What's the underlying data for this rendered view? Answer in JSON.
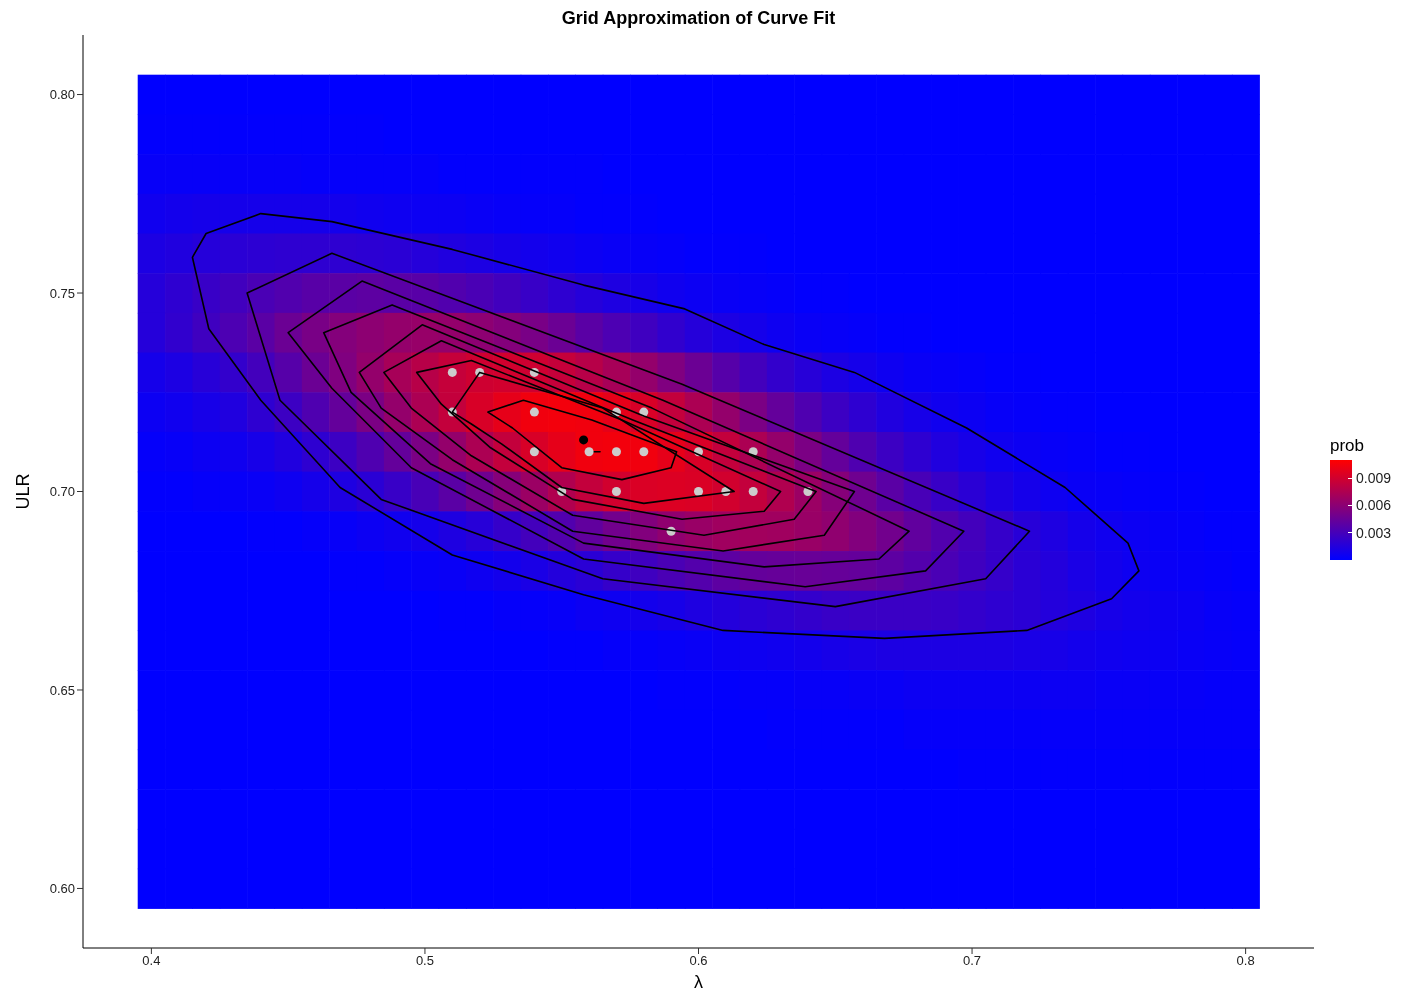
{
  "chart_data": {
    "type": "heatmap",
    "title": "Grid Approximation of Curve Fit",
    "xlabel": "λ",
    "ylabel": "ULR",
    "clabel": "prob",
    "x": [
      0.4,
      0.41,
      0.42,
      0.43,
      0.44,
      0.45,
      0.46,
      0.47,
      0.48,
      0.49,
      0.5,
      0.51,
      0.52,
      0.53,
      0.54,
      0.55,
      0.56,
      0.57,
      0.58,
      0.59,
      0.6,
      0.61,
      0.62,
      0.63,
      0.64,
      0.65,
      0.66,
      0.67,
      0.68,
      0.69,
      0.7,
      0.71,
      0.72,
      0.73,
      0.74,
      0.75,
      0.76,
      0.77,
      0.78,
      0.79,
      0.8
    ],
    "y": [
      0.8,
      0.79,
      0.78,
      0.77,
      0.76,
      0.75,
      0.74,
      0.73,
      0.72,
      0.71,
      0.7,
      0.69,
      0.68,
      0.67,
      0.66,
      0.65,
      0.64,
      0.63,
      0.62,
      0.61,
      0.6
    ],
    "cells": [
      [
        0,
        0,
        0,
        0,
        0,
        0,
        0,
        0,
        0,
        0,
        0,
        0,
        0,
        0,
        0,
        0,
        0,
        0,
        0,
        0,
        0,
        0,
        0,
        0,
        0,
        0,
        0,
        0,
        0,
        0,
        0,
        0,
        0,
        0,
        0,
        0,
        0,
        0,
        0,
        0,
        0
      ],
      [
        0.0001,
        0.0001,
        0.0001,
        0.0001,
        0.0001,
        0.0001,
        0.0001,
        0.0001,
        0.0001,
        0,
        0,
        0,
        0,
        0,
        0,
        0,
        0,
        0,
        0,
        0,
        0,
        0,
        0,
        0,
        0,
        0,
        0,
        0,
        0,
        0,
        0,
        0,
        0,
        0,
        0,
        0,
        0,
        0,
        0,
        0,
        0
      ],
      [
        0.0003,
        0.0003,
        0.0003,
        0.0003,
        0.0003,
        0.0003,
        0.0002,
        0.0002,
        0.0002,
        0.0002,
        0.0002,
        0.0001,
        0.0001,
        0.0001,
        0.0001,
        0.0001,
        0.0001,
        0,
        0,
        0,
        0,
        0,
        0,
        0,
        0,
        0,
        0,
        0,
        0,
        0,
        0,
        0,
        0,
        0,
        0,
        0,
        0,
        0,
        0,
        0,
        0
      ],
      [
        0.0007,
        0.0008,
        0.0009,
        0.0009,
        0.0009,
        0.0009,
        0.0009,
        0.0008,
        0.0007,
        0.0006,
        0.0005,
        0.0005,
        0.0004,
        0.0003,
        0.0002,
        0.0002,
        0.0001,
        0.0001,
        0.0001,
        0,
        0,
        0,
        0,
        0,
        0,
        0,
        0,
        0,
        0,
        0,
        0,
        0,
        0,
        0,
        0,
        0,
        0,
        0,
        0,
        0,
        0
      ],
      [
        0.0012,
        0.0014,
        0.0016,
        0.0018,
        0.0019,
        0.002,
        0.002,
        0.002,
        0.0019,
        0.0018,
        0.0016,
        0.0014,
        0.0012,
        0.001,
        0.0008,
        0.0007,
        0.0005,
        0.0004,
        0.0003,
        0.0002,
        0.0001,
        0.0001,
        0.0001,
        0,
        0,
        0,
        0,
        0,
        0,
        0,
        0,
        0,
        0,
        0,
        0,
        0,
        0,
        0,
        0,
        0,
        0
      ],
      [
        0.0016,
        0.002,
        0.0024,
        0.0028,
        0.0032,
        0.0035,
        0.0038,
        0.0039,
        0.004,
        0.0039,
        0.0038,
        0.0035,
        0.0032,
        0.0028,
        0.0024,
        0.002,
        0.0016,
        0.0013,
        0.001,
        0.0007,
        0.0005,
        0.0004,
        0.0003,
        0.0002,
        0.0001,
        0.0001,
        0,
        0,
        0,
        0,
        0,
        0,
        0,
        0,
        0,
        0,
        0,
        0,
        0,
        0,
        0
      ],
      [
        0.0016,
        0.0021,
        0.0027,
        0.0033,
        0.0039,
        0.0046,
        0.0052,
        0.0057,
        0.0061,
        0.0064,
        0.0065,
        0.0064,
        0.0061,
        0.0057,
        0.0052,
        0.0046,
        0.0039,
        0.0033,
        0.0027,
        0.0021,
        0.0016,
        0.0012,
        0.0009,
        0.0006,
        0.0004,
        0.0003,
        0.0002,
        0.0001,
        0.0001,
        0,
        0,
        0,
        0,
        0,
        0,
        0,
        0,
        0,
        0,
        0,
        0
      ],
      [
        0.0009,
        0.0012,
        0.0017,
        0.0022,
        0.0029,
        0.0037,
        0.0046,
        0.0055,
        0.0064,
        0.0072,
        0.0079,
        0.0085,
        0.0089,
        0.009,
        0.0089,
        0.0085,
        0.0079,
        0.0072,
        0.0064,
        0.0055,
        0.0046,
        0.0037,
        0.0029,
        0.0022,
        0.0017,
        0.0012,
        0.0009,
        0.0006,
        0.0004,
        0.0003,
        0.0002,
        0.0001,
        0.0001,
        0,
        0,
        0,
        0,
        0,
        0,
        0,
        0
      ],
      [
        0.0005,
        0.0007,
        0.001,
        0.0014,
        0.002,
        0.0026,
        0.0034,
        0.0043,
        0.0053,
        0.0064,
        0.0074,
        0.0084,
        0.0093,
        0.0099,
        0.0104,
        0.0105,
        0.0104,
        0.0099,
        0.0093,
        0.0084,
        0.0074,
        0.0064,
        0.0053,
        0.0043,
        0.0034,
        0.0026,
        0.002,
        0.0014,
        0.001,
        0.0007,
        0.0005,
        0.0003,
        0.0002,
        0.0001,
        0.0001,
        0,
        0,
        0,
        0,
        0,
        0
      ],
      [
        0.0002,
        0.0003,
        0.0005,
        0.0007,
        0.001,
        0.0014,
        0.002,
        0.0026,
        0.0034,
        0.0043,
        0.0053,
        0.0064,
        0.0074,
        0.0084,
        0.0093,
        0.0099,
        0.0104,
        0.0105,
        0.0104,
        0.0099,
        0.0093,
        0.0084,
        0.0074,
        0.0064,
        0.0053,
        0.0043,
        0.0034,
        0.0026,
        0.002,
        0.0014,
        0.001,
        0.0007,
        0.0005,
        0.0003,
        0.0002,
        0.0001,
        0.0001,
        0,
        0,
        0,
        0
      ],
      [
        0.0001,
        0.0001,
        0.0002,
        0.0003,
        0.0004,
        0.0006,
        0.0009,
        0.0013,
        0.0018,
        0.0024,
        0.0031,
        0.0039,
        0.0048,
        0.0058,
        0.0067,
        0.0076,
        0.0084,
        0.009,
        0.0094,
        0.0095,
        0.0094,
        0.009,
        0.0084,
        0.0076,
        0.0067,
        0.0058,
        0.0048,
        0.0039,
        0.0031,
        0.0024,
        0.0018,
        0.0013,
        0.0009,
        0.0006,
        0.0004,
        0.0003,
        0.0002,
        0.0001,
        0.0001,
        0,
        0
      ],
      [
        0,
        0,
        0,
        0,
        0.0001,
        0.0001,
        0.0002,
        0.0003,
        0.0005,
        0.0007,
        0.0009,
        0.0013,
        0.0017,
        0.0023,
        0.0029,
        0.0035,
        0.0042,
        0.0049,
        0.0056,
        0.0062,
        0.0066,
        0.0069,
        0.007,
        0.0069,
        0.0066,
        0.0062,
        0.0056,
        0.0049,
        0.0042,
        0.0035,
        0.0029,
        0.0023,
        0.0017,
        0.0013,
        0.0009,
        0.0007,
        0.0005,
        0.0003,
        0.0002,
        0.0001,
        0.0001
      ],
      [
        0,
        0,
        0,
        0,
        0,
        0,
        0,
        0.0001,
        0.0001,
        0.0002,
        0.0003,
        0.0004,
        0.0006,
        0.0008,
        0.0011,
        0.0015,
        0.0018,
        0.0023,
        0.0027,
        0.0032,
        0.0036,
        0.004,
        0.0043,
        0.0044,
        0.0045,
        0.0044,
        0.0043,
        0.004,
        0.0036,
        0.0032,
        0.0027,
        0.0023,
        0.0018,
        0.0015,
        0.0011,
        0.0008,
        0.0006,
        0.0004,
        0.0003,
        0.0002,
        0.0001
      ],
      [
        0,
        0,
        0,
        0,
        0,
        0,
        0,
        0,
        0,
        0,
        0,
        0.0001,
        0.0001,
        0.0002,
        0.0002,
        0.0003,
        0.0005,
        0.0006,
        0.0008,
        0.001,
        0.0013,
        0.0015,
        0.0018,
        0.002,
        0.0022,
        0.0024,
        0.0025,
        0.0025,
        0.0025,
        0.0024,
        0.0022,
        0.002,
        0.0018,
        0.0015,
        0.0013,
        0.001,
        0.0008,
        0.0006,
        0.0005,
        0.0003,
        0.0002
      ],
      [
        0,
        0,
        0,
        0,
        0,
        0,
        0,
        0,
        0,
        0,
        0,
        0,
        0,
        0,
        0,
        0.0001,
        0.0001,
        0.0002,
        0.0002,
        0.0003,
        0.0004,
        0.0005,
        0.0006,
        0.0007,
        0.0008,
        0.001,
        0.0011,
        0.0012,
        0.0012,
        0.0012,
        0.0012,
        0.0012,
        0.0011,
        0.001,
        0.0008,
        0.0007,
        0.0006,
        0.0005,
        0.0004,
        0.0003,
        0.0002
      ],
      [
        0,
        0,
        0,
        0,
        0,
        0,
        0,
        0,
        0,
        0,
        0,
        0,
        0,
        0,
        0,
        0,
        0,
        0,
        0,
        0.0001,
        0.0001,
        0.0001,
        0.0002,
        0.0002,
        0.0003,
        0.0003,
        0.0004,
        0.0004,
        0.0005,
        0.0005,
        0.0005,
        0.0005,
        0.0005,
        0.0005,
        0.0005,
        0.0004,
        0.0004,
        0.0003,
        0.0003,
        0.0002,
        0.0002
      ],
      [
        0,
        0,
        0,
        0,
        0,
        0,
        0,
        0,
        0,
        0,
        0,
        0,
        0,
        0,
        0,
        0,
        0,
        0,
        0,
        0,
        0,
        0,
        0,
        0.0001,
        0.0001,
        0.0001,
        0.0001,
        0.0001,
        0.0002,
        0.0002,
        0.0002,
        0.0002,
        0.0002,
        0.0002,
        0.0002,
        0.0002,
        0.0002,
        0.0002,
        0.0002,
        0.0002,
        0.0002
      ],
      [
        0,
        0,
        0,
        0,
        0,
        0,
        0,
        0,
        0,
        0,
        0,
        0,
        0,
        0,
        0,
        0,
        0,
        0,
        0,
        0,
        0,
        0,
        0,
        0,
        0,
        0,
        0,
        0,
        0,
        0,
        0.0001,
        0.0001,
        0.0001,
        0.0001,
        0.0001,
        0.0001,
        0.0001,
        0.0001,
        0.0001,
        0.0001,
        0.0001
      ],
      [
        0,
        0,
        0,
        0,
        0,
        0,
        0,
        0,
        0,
        0,
        0,
        0,
        0,
        0,
        0,
        0,
        0,
        0,
        0,
        0,
        0,
        0,
        0,
        0,
        0,
        0,
        0,
        0,
        0,
        0,
        0,
        0,
        0,
        0,
        0,
        0,
        0,
        0,
        0,
        0,
        0
      ],
      [
        0,
        0,
        0,
        0,
        0,
        0,
        0,
        0,
        0,
        0,
        0,
        0,
        0,
        0,
        0,
        0,
        0,
        0,
        0,
        0,
        0,
        0,
        0,
        0,
        0,
        0,
        0,
        0,
        0,
        0,
        0,
        0,
        0,
        0,
        0,
        0,
        0,
        0,
        0,
        0,
        0
      ],
      [
        0,
        0,
        0,
        0,
        0,
        0,
        0,
        0,
        0,
        0,
        0,
        0,
        0,
        0,
        0,
        0,
        0,
        0,
        0,
        0,
        0,
        0,
        0,
        0,
        0,
        0,
        0,
        0,
        0,
        0,
        0,
        0,
        0,
        0,
        0,
        0,
        0,
        0,
        0,
        0,
        0
      ]
    ],
    "colors": [
      "#0000ff",
      "#ff0000"
    ],
    "clim": [
      0,
      0.011
    ],
    "cticks": [
      0.003,
      0.006,
      0.009
    ],
    "xlim": [
      0.375,
      0.825
    ],
    "xticks": [
      0.4,
      0.5,
      0.6,
      0.7,
      0.8
    ],
    "ylim": [
      0.585,
      0.815
    ],
    "yticks": [
      {
        "value": 0.6,
        "label": "0.60"
      },
      0.65,
      {
        "value": 0.7,
        "label": "0.70"
      },
      0.75,
      {
        "value": 0.8,
        "label": "0.80"
      }
    ],
    "series": [
      {
        "type": "line",
        "color": "#000000",
        "x": [
          0.56,
          0.564
        ],
        "values": [
          0.71,
          0.71
        ]
      },
      {
        "type": "scatter",
        "marker": "circle",
        "color": "#cccccc",
        "x": [
          0.51,
          0.52,
          0.54,
          0.51,
          0.54,
          0.57,
          0.58,
          0.54,
          0.56,
          0.57,
          0.58,
          0.6,
          0.62,
          0.55,
          0.57,
          0.6,
          0.61,
          0.62,
          0.64,
          0.59
        ],
        "values": [
          0.73,
          0.73,
          0.73,
          0.72,
          0.72,
          0.72,
          0.72,
          0.71,
          0.71,
          0.71,
          0.71,
          0.71,
          0.71,
          0.7,
          0.7,
          0.7,
          0.7,
          0.7,
          0.7,
          0.69
        ]
      },
      {
        "type": "scatter",
        "marker": "circle",
        "color": "#000000",
        "x": [
          0.558
        ],
        "values": [
          0.713
        ]
      }
    ]
  }
}
